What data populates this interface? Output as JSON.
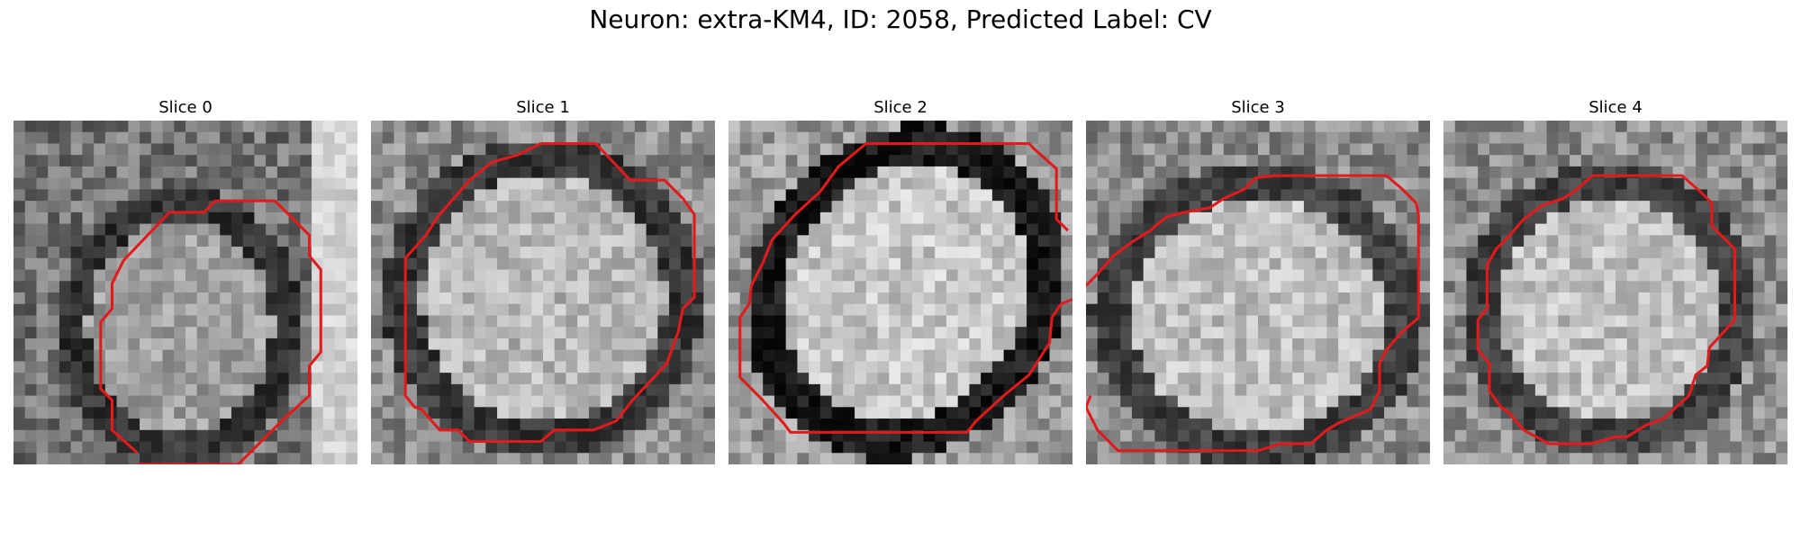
{
  "figure": {
    "title": "Neuron: extra-KM4, ID: 2058, Predicted Label: CV"
  },
  "panels": [
    {
      "title": "Slice 0",
      "contour_color": "#e31a1c"
    },
    {
      "title": "Slice 1",
      "contour_color": "#e31a1c"
    },
    {
      "title": "Slice 2",
      "contour_color": "#e31a1c"
    },
    {
      "title": "Slice 3",
      "contour_color": "#e31a1c"
    },
    {
      "title": "Slice 4",
      "contour_color": "#e31a1c"
    }
  ],
  "colormap": "gray"
}
